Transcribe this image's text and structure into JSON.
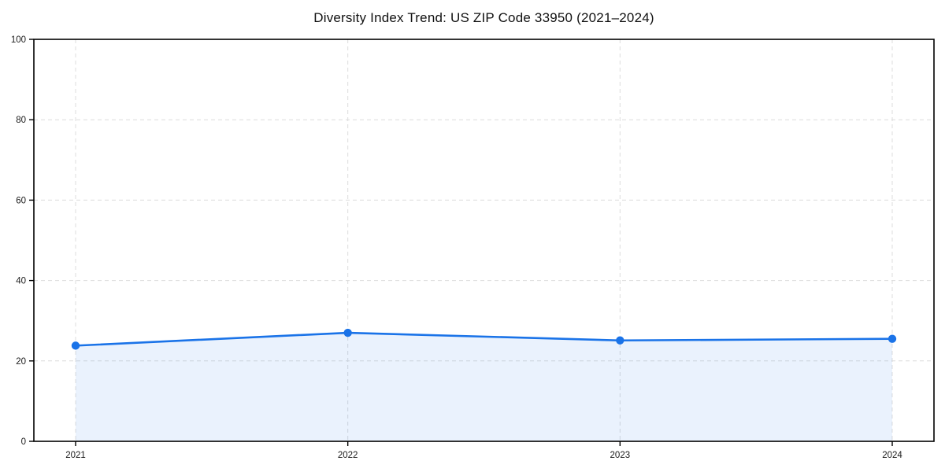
{
  "chart_data": {
    "type": "line",
    "title": "Diversity Index Trend: US ZIP Code 33950 (2021–2024)",
    "x": [
      2021,
      2022,
      2023,
      2024
    ],
    "x_tick_labels": [
      "2021",
      "2022",
      "2023",
      "2024"
    ],
    "values": [
      23.8,
      27,
      25.1,
      25.5
    ],
    "xlabel": "",
    "ylabel": "",
    "ylim": [
      0,
      100
    ],
    "y_ticks": [
      0,
      20,
      40,
      60,
      80,
      100
    ],
    "grid": "dashed light-gray, horizontal at each y tick and vertical at each year",
    "legend_position": "none",
    "line_color": "#1a73e8",
    "marker": "circle",
    "fill_under_line": true,
    "fill_color": "#1a73e8",
    "fill_opacity": 0.09,
    "axis_color": "#000000",
    "grid_color": "#dcdcdc"
  }
}
